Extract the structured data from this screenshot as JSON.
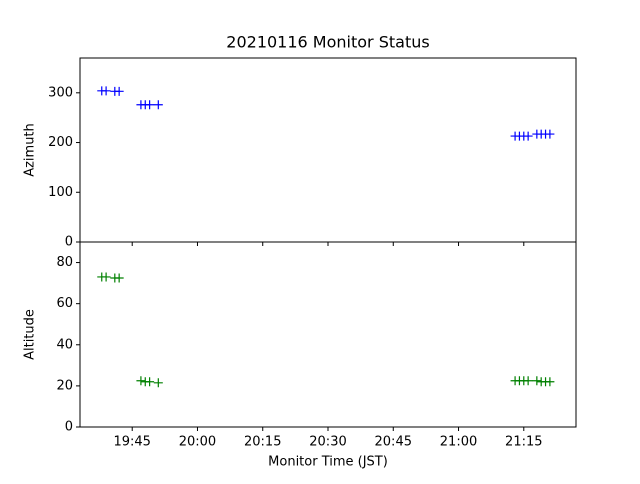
{
  "chart_data": [
    {
      "type": "scatter",
      "title": "20210116 Monitor Status",
      "ylabel": "Azimuth",
      "marker": "+",
      "xlim": [
        "19:33",
        "21:27"
      ],
      "ylim": [
        0,
        370
      ],
      "yticks": [
        0,
        100,
        200,
        300
      ],
      "series": [
        {
          "color": "#0000ff",
          "x": [
            "19:38",
            "19:39",
            "19:41",
            "19:42",
            "19:47",
            "19:48",
            "19:49",
            "19:51",
            "21:13",
            "21:14",
            "21:15",
            "21:16",
            "21:18",
            "21:19",
            "21:20",
            "21:21"
          ],
          "values": [
            304,
            304,
            303,
            303,
            276,
            276,
            276,
            276,
            213,
            213,
            213,
            213,
            217,
            217,
            217,
            217
          ]
        }
      ]
    },
    {
      "type": "scatter",
      "ylabel": "Altitude",
      "xlabel": "Monitor Time (JST)",
      "marker": "+",
      "xlim": [
        "19:33",
        "21:27"
      ],
      "ylim": [
        0,
        90
      ],
      "yticks": [
        0,
        20,
        40,
        60,
        80
      ],
      "xticks": [
        "19:45",
        "20:00",
        "20:15",
        "20:30",
        "20:45",
        "21:00",
        "21:15"
      ],
      "series": [
        {
          "color": "#008000",
          "x": [
            "19:38",
            "19:39",
            "19:41",
            "19:42",
            "19:47",
            "19:48",
            "19:49",
            "19:51",
            "21:13",
            "21:14",
            "21:15",
            "21:16",
            "21:18",
            "21:19",
            "21:20",
            "21:21"
          ],
          "values": [
            73,
            73,
            72.5,
            72.5,
            22.5,
            22,
            22,
            21.5,
            22.5,
            22.5,
            22.5,
            22.5,
            22.5,
            22,
            22,
            22
          ]
        }
      ]
    }
  ]
}
